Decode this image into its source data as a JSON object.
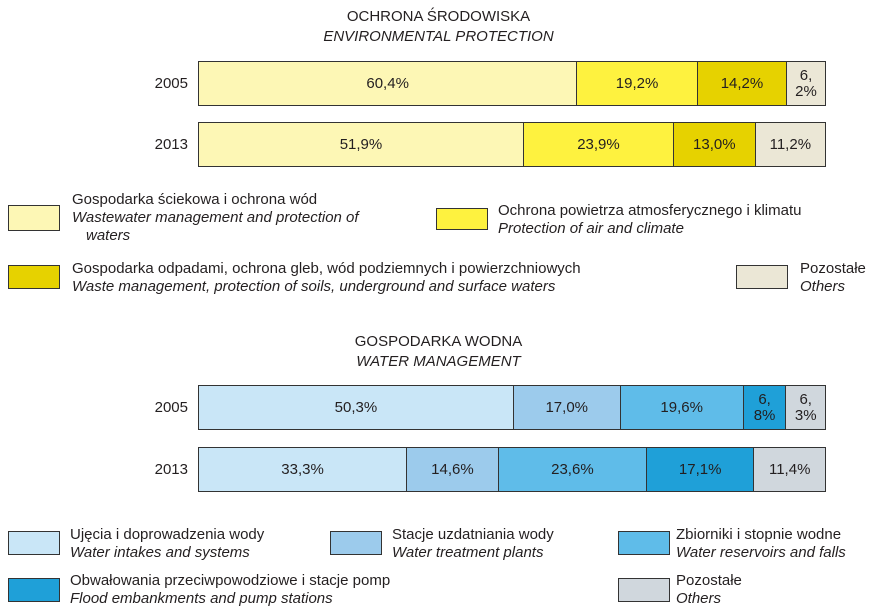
{
  "chart_data": [
    {
      "type": "bar",
      "stacked": true,
      "orientation": "horizontal",
      "title": "OCHRONA ŚRODOWISKA",
      "subtitle": "ENVIRONMENTAL PROTECTION",
      "categories": [
        "2005",
        "2013"
      ],
      "xlim": [
        0,
        100
      ],
      "series": [
        {
          "name": "Gospodarka ściekowa i ochrona wód",
          "name_en": "Wastewater management and protection of waters",
          "color": "#fdf7b5",
          "values": [
            60.4,
            51.9
          ],
          "value_labels": [
            "60,4%",
            "51,9%"
          ]
        },
        {
          "name": "Ochrona powietrza atmosferycznego i klimatu",
          "name_en": "Protection of air and climate",
          "color": "#fef23f",
          "values": [
            19.2,
            23.9
          ],
          "value_labels": [
            "19,2%",
            "23,9%"
          ]
        },
        {
          "name": "Gospodarka odpadami, ochrona gleb, wód podziemnych i powierzchniowych",
          "name_en": "Waste management, protection of soils, underground and surface waters",
          "color": "#e6d200",
          "values": [
            14.2,
            13.0
          ],
          "value_labels": [
            "14,2%",
            "13,0%"
          ]
        },
        {
          "name": "Pozostałe",
          "name_en": "Others",
          "color": "#ebe7d6",
          "values": [
            6.2,
            11.2
          ],
          "value_labels": [
            "6,2%",
            "11,2%"
          ]
        }
      ]
    },
    {
      "type": "bar",
      "stacked": true,
      "orientation": "horizontal",
      "title": "GOSPODARKA WODNA",
      "subtitle": "WATER MANAGEMENT",
      "categories": [
        "2005",
        "2013"
      ],
      "xlim": [
        0,
        100
      ],
      "series": [
        {
          "name": "Ujęcia i doprowadzenia wody",
          "name_en": "Water intakes and systems",
          "color": "#c9e6f7",
          "values": [
            50.3,
            33.3
          ],
          "value_labels": [
            "50,3%",
            "33,3%"
          ]
        },
        {
          "name": "Stacje uzdatniania wody",
          "name_en": "Water treatment plants",
          "color": "#9ccbec",
          "values": [
            17.0,
            14.6
          ],
          "value_labels": [
            "17,0%",
            "14,6%"
          ]
        },
        {
          "name": "Zbiorniki i stopnie wodne",
          "name_en": "Water reservoirs and falls",
          "color": "#5fbce9",
          "values": [
            19.6,
            23.6
          ],
          "value_labels": [
            "19,6%",
            "23,6%"
          ]
        },
        {
          "name": "Obwałowania przeciwpowodziowe i stacje pomp",
          "name_en": "Flood embankments and pump stations",
          "color": "#1fa0d8",
          "values": [
            6.8,
            17.1
          ],
          "value_labels": [
            "6,8%",
            "17,1%"
          ]
        },
        {
          "name": "Pozostałe",
          "name_en": "Others",
          "color": "#d0d7dd",
          "values": [
            6.3,
            11.4
          ],
          "value_labels": [
            "6,3%",
            "11,4%"
          ]
        }
      ]
    }
  ]
}
